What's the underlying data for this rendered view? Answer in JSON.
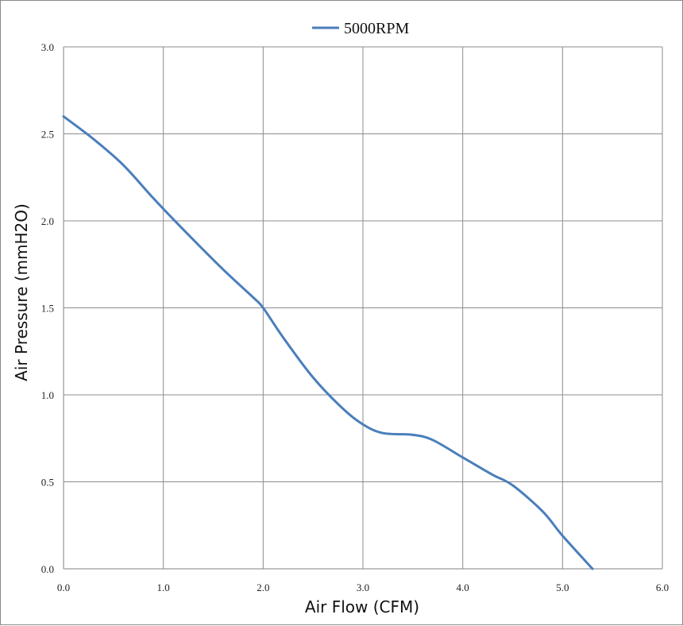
{
  "chart_data": {
    "type": "line",
    "title": "",
    "xlabel": "Air Flow (CFM)",
    "ylabel": "Air Pressure (mmH2O)",
    "xlim": [
      0,
      6
    ],
    "ylim": [
      0,
      3
    ],
    "x_ticks": [
      "0.0",
      "1.0",
      "2.0",
      "3.0",
      "4.0",
      "5.0",
      "6.0"
    ],
    "y_ticks": [
      "0.0",
      "0.5",
      "1.0",
      "1.5",
      "2.0",
      "2.5",
      "3.0"
    ],
    "grid": true,
    "legend_position": "top-center",
    "series": [
      {
        "name": "5000RPM",
        "color": "#4a7ebb",
        "x": [
          0.0,
          0.3,
          0.6,
          0.9,
          1.2,
          1.6,
          1.9,
          2.0,
          2.2,
          2.5,
          2.8,
          3.0,
          3.2,
          3.5,
          3.7,
          4.0,
          4.3,
          4.5,
          4.8,
          5.0,
          5.3
        ],
        "y": [
          2.6,
          2.47,
          2.32,
          2.13,
          1.95,
          1.72,
          1.56,
          1.5,
          1.33,
          1.1,
          0.92,
          0.83,
          0.78,
          0.77,
          0.74,
          0.64,
          0.54,
          0.48,
          0.33,
          0.19,
          0.0
        ]
      }
    ]
  }
}
